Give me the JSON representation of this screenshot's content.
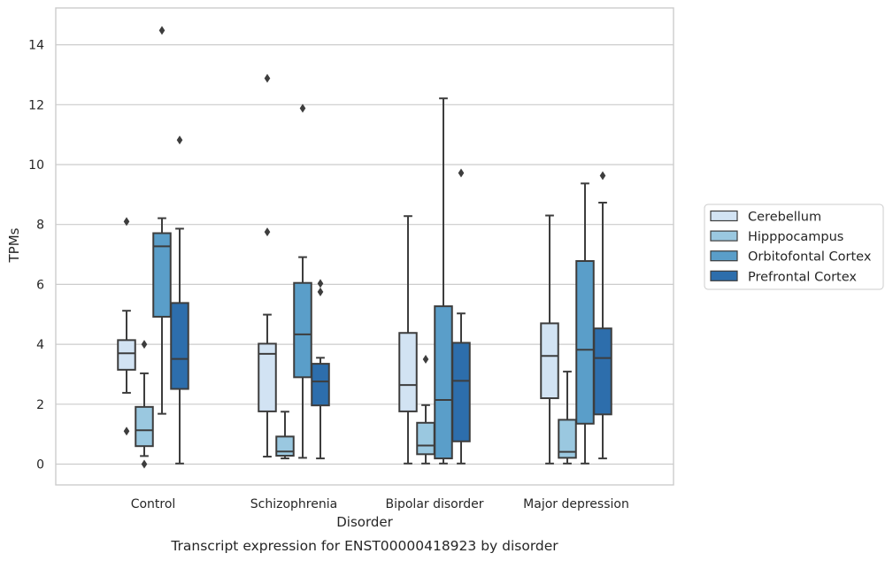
{
  "chart_data": {
    "type": "box",
    "title": "",
    "caption": "Transcript expression for ENST00000418923 by disorder",
    "xlabel": "Disorder",
    "ylabel": "TPMs",
    "ylim": [
      -0.7,
      15.2
    ],
    "yticks": [
      0,
      2,
      4,
      6,
      8,
      10,
      12,
      14
    ],
    "grid": "horizontal",
    "legend_position": "right",
    "categories": [
      "Control",
      "Schizophrenia",
      "Bipolar disorder",
      "Major depression"
    ],
    "series": [
      {
        "name": "Cerebellum",
        "color": "#d2e3f3",
        "boxes": [
          {
            "whislo": 2.38,
            "q1": 3.15,
            "med": 3.7,
            "q3": 4.14,
            "whishi": 5.12,
            "fliers": [
              8.1,
              1.1
            ]
          },
          {
            "whislo": 0.25,
            "q1": 1.76,
            "med": 3.68,
            "q3": 4.02,
            "whishi": 4.99,
            "fliers": [
              12.88,
              7.75
            ]
          },
          {
            "whislo": 0.02,
            "q1": 1.76,
            "med": 2.64,
            "q3": 4.38,
            "whishi": 8.28,
            "fliers": []
          },
          {
            "whislo": 0.02,
            "q1": 2.2,
            "med": 3.61,
            "q3": 4.7,
            "whishi": 8.3,
            "fliers": []
          }
        ]
      },
      {
        "name": "Hipppocampus",
        "color": "#9ac8e0",
        "boxes": [
          {
            "whislo": 0.27,
            "q1": 0.6,
            "med": 1.13,
            "q3": 1.91,
            "whishi": 3.03,
            "fliers": [
              4.0,
              0.0
            ]
          },
          {
            "whislo": 0.19,
            "q1": 0.28,
            "med": 0.42,
            "q3": 0.92,
            "whishi": 1.75,
            "fliers": []
          },
          {
            "whislo": 0.02,
            "q1": 0.33,
            "med": 0.62,
            "q3": 1.38,
            "whishi": 1.97,
            "fliers": [
              3.5
            ]
          },
          {
            "whislo": 0.02,
            "q1": 0.21,
            "med": 0.41,
            "q3": 1.48,
            "whishi": 3.09,
            "fliers": []
          }
        ]
      },
      {
        "name": "Orbitofontal Cortex",
        "color": "#5a9ec9",
        "boxes": [
          {
            "whislo": 1.68,
            "q1": 4.92,
            "med": 7.27,
            "q3": 7.71,
            "whishi": 8.21,
            "fliers": [
              14.48
            ]
          },
          {
            "whislo": 0.21,
            "q1": 2.9,
            "med": 4.33,
            "q3": 6.05,
            "whishi": 6.91,
            "fliers": [
              11.88
            ]
          },
          {
            "whislo": 0.02,
            "q1": 0.19,
            "med": 2.14,
            "q3": 5.27,
            "whishi": 12.21,
            "fliers": []
          },
          {
            "whislo": 0.02,
            "q1": 1.35,
            "med": 3.82,
            "q3": 6.78,
            "whishi": 9.37,
            "fliers": []
          }
        ]
      },
      {
        "name": "Prefrontal Cortex",
        "color": "#2d6eac",
        "boxes": [
          {
            "whislo": 0.02,
            "q1": 2.51,
            "med": 3.51,
            "q3": 5.38,
            "whishi": 7.86,
            "fliers": [
              10.82
            ]
          },
          {
            "whislo": 0.19,
            "q1": 1.96,
            "med": 2.76,
            "q3": 3.35,
            "whishi": 3.55,
            "fliers": [
              6.03,
              5.75
            ]
          },
          {
            "whislo": 0.02,
            "q1": 0.76,
            "med": 2.78,
            "q3": 4.05,
            "whishi": 5.03,
            "fliers": [
              9.72
            ]
          },
          {
            "whislo": 0.19,
            "q1": 1.66,
            "med": 3.54,
            "q3": 4.53,
            "whishi": 8.73,
            "fliers": [
              9.63
            ]
          }
        ]
      }
    ]
  }
}
